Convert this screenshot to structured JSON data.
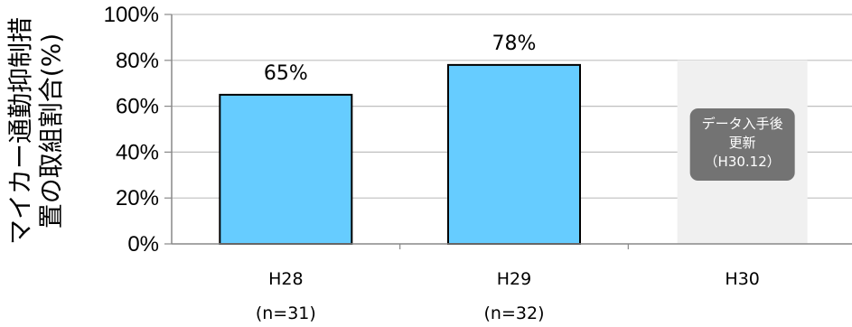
{
  "chart_data": {
    "type": "bar",
    "categories": [
      "H28",
      "H29",
      "H30"
    ],
    "category_sublabels": [
      "(n=31)",
      "(n=32)",
      ""
    ],
    "values": [
      65,
      78,
      null
    ],
    "value_labels": [
      "65%",
      "78%",
      ""
    ],
    "ylabel_lines": [
      "マイカー通勤抑制措",
      "置の取組割合(%)"
    ],
    "yticks": [
      "0%",
      "20%",
      "40%",
      "60%",
      "80%",
      "100%"
    ],
    "ylim": [
      0,
      100
    ],
    "grid": true,
    "colors": {
      "bar_fill": "#66ccff",
      "bar_stroke": "#000000",
      "pending_bg": "#f0f0f0",
      "note_bg": "#737373",
      "grid": "#bfbfbf"
    },
    "pending_note": {
      "category_index": 2,
      "lines": [
        "データ入手後",
        "更新",
        "（H30.12）"
      ]
    }
  }
}
